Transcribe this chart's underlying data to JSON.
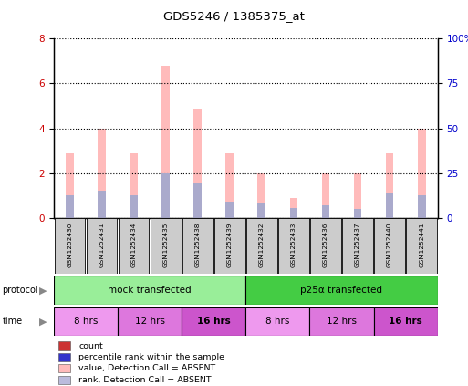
{
  "title": "GDS5246 / 1385375_at",
  "samples": [
    "GSM1252430",
    "GSM1252431",
    "GSM1252434",
    "GSM1252435",
    "GSM1252438",
    "GSM1252439",
    "GSM1252432",
    "GSM1252433",
    "GSM1252436",
    "GSM1252437",
    "GSM1252440",
    "GSM1252441"
  ],
  "pink_bars": [
    2.9,
    4.0,
    2.9,
    6.8,
    4.9,
    2.9,
    2.0,
    0.9,
    2.0,
    2.0,
    2.9,
    4.0
  ],
  "blue_bars": [
    1.0,
    1.2,
    1.0,
    2.0,
    1.6,
    0.75,
    0.65,
    0.45,
    0.55,
    0.4,
    1.1,
    1.0
  ],
  "ylim_left": [
    0,
    8
  ],
  "ylim_right": [
    0,
    100
  ],
  "yticks_left": [
    0,
    2,
    4,
    6,
    8
  ],
  "yticks_right": [
    0,
    25,
    50,
    75,
    100
  ],
  "ytick_labels_right": [
    "0",
    "25",
    "50",
    "75",
    "100%"
  ],
  "protocol_groups": [
    {
      "label": "mock transfected",
      "start": 0,
      "end": 6,
      "color": "#99ee99"
    },
    {
      "label": "p25α transfected",
      "start": 6,
      "end": 12,
      "color": "#44cc44"
    }
  ],
  "time_groups": [
    {
      "label": "8 hrs",
      "start": 0,
      "end": 2,
      "color": "#ee99ee"
    },
    {
      "label": "12 hrs",
      "start": 2,
      "end": 4,
      "color": "#dd77dd"
    },
    {
      "label": "16 hrs",
      "start": 4,
      "end": 6,
      "color": "#cc55cc"
    },
    {
      "label": "8 hrs",
      "start": 6,
      "end": 8,
      "color": "#ee99ee"
    },
    {
      "label": "12 hrs",
      "start": 8,
      "end": 10,
      "color": "#dd77dd"
    },
    {
      "label": "16 hrs",
      "start": 10,
      "end": 12,
      "color": "#cc55cc"
    }
  ],
  "legend_items": [
    {
      "color": "#cc3333",
      "label": "count"
    },
    {
      "color": "#3333cc",
      "label": "percentile rank within the sample"
    },
    {
      "color": "#ffbbbb",
      "label": "value, Detection Call = ABSENT"
    },
    {
      "color": "#bbbbdd",
      "label": "rank, Detection Call = ABSENT"
    }
  ],
  "pink_color": "#ffbbbb",
  "blue_color": "#aaaacc",
  "bg_color": "#ffffff",
  "axis_label_color_left": "#cc0000",
  "axis_label_color_right": "#0000cc",
  "bar_width": 0.25
}
